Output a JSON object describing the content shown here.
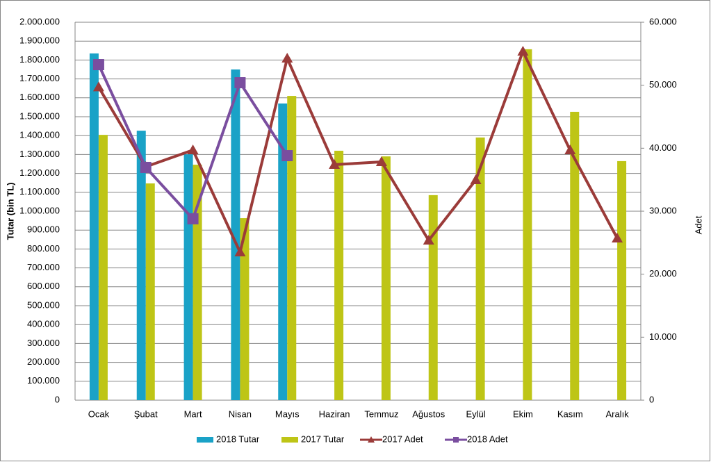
{
  "chart_data": {
    "type": "bar",
    "y_label": "Tutar (bin TL)",
    "y2_label": "Adet",
    "categories": [
      "Ocak",
      "Şubat",
      "Mart",
      "Nisan",
      "Mayıs",
      "Haziran",
      "Temmuz",
      "Ağustos",
      "Eylül",
      "Ekim",
      "Kasım",
      "Aralık"
    ],
    "series": [
      {
        "name": "2018 Tutar",
        "type": "bar",
        "color": "#1aa2c7",
        "values": [
          1835000,
          1426000,
          1301000,
          1750000,
          1570000,
          null,
          null,
          null,
          null,
          null,
          null,
          null
        ]
      },
      {
        "name": "2017 Tutar",
        "type": "bar",
        "color": "#bec516",
        "values": [
          1404000,
          1147000,
          1246000,
          963000,
          1610000,
          1320000,
          1290000,
          1085000,
          1390000,
          1857000,
          1526000,
          1265000
        ]
      },
      {
        "name": "2017 Adet",
        "type": "line",
        "axis": "y2",
        "marker": "triangle",
        "color": "#9b3b39",
        "values": [
          49700,
          37060,
          39700,
          23490,
          54260,
          37390,
          37830,
          25370,
          34960,
          55370,
          39700,
          25700
        ]
      },
      {
        "name": "2018 Adet",
        "type": "line",
        "axis": "y2",
        "marker": "square",
        "color": "#7a4e9f",
        "values": [
          53270,
          36950,
          28790,
          50400,
          38820,
          null,
          null,
          null,
          null,
          null,
          null,
          null
        ]
      }
    ],
    "ylim": [
      0,
      2000000
    ],
    "yticks": [
      0,
      {
        "value": 100000,
        "label": "100.000"
      },
      {
        "value": 200000,
        "label": "200.000"
      },
      {
        "value": 300000,
        "label": "300.000"
      },
      {
        "value": 400000,
        "label": "400.000"
      },
      {
        "value": 500000,
        "label": "500.000"
      },
      {
        "value": 600000,
        "label": "600.000"
      },
      {
        "value": 700000,
        "label": "700.000"
      },
      {
        "value": 800000,
        "label": "800.000"
      },
      {
        "value": 900000,
        "label": "900.000"
      },
      {
        "value": 1000000,
        "label": "1.000.000"
      },
      {
        "value": 1100000,
        "label": "1.100.000"
      },
      {
        "value": 1200000,
        "label": "1.200.000"
      },
      {
        "value": 1300000,
        "label": "1.300.000"
      },
      {
        "value": 1400000,
        "label": "1.400.000"
      },
      {
        "value": 1500000,
        "label": "1.500.000"
      },
      {
        "value": 1600000,
        "label": "1.600.000"
      },
      {
        "value": 1700000,
        "label": "1.700.000"
      },
      {
        "value": 1800000,
        "label": "1.800.000"
      },
      {
        "value": 1900000,
        "label": "1.900.000"
      },
      {
        "value": 2000000,
        "label": "2.000.000"
      }
    ],
    "y2lim": [
      0,
      60000
    ],
    "y2ticks": [
      0,
      {
        "value": 10000,
        "label": "10.000"
      },
      {
        "value": 20000,
        "label": "20.000"
      },
      {
        "value": 30000,
        "label": "30.000"
      },
      {
        "value": 40000,
        "label": "40.000"
      },
      {
        "value": 50000,
        "label": "50.000"
      },
      {
        "value": 60000,
        "label": "60.000"
      }
    ],
    "grid": true,
    "legend": "bottom"
  }
}
